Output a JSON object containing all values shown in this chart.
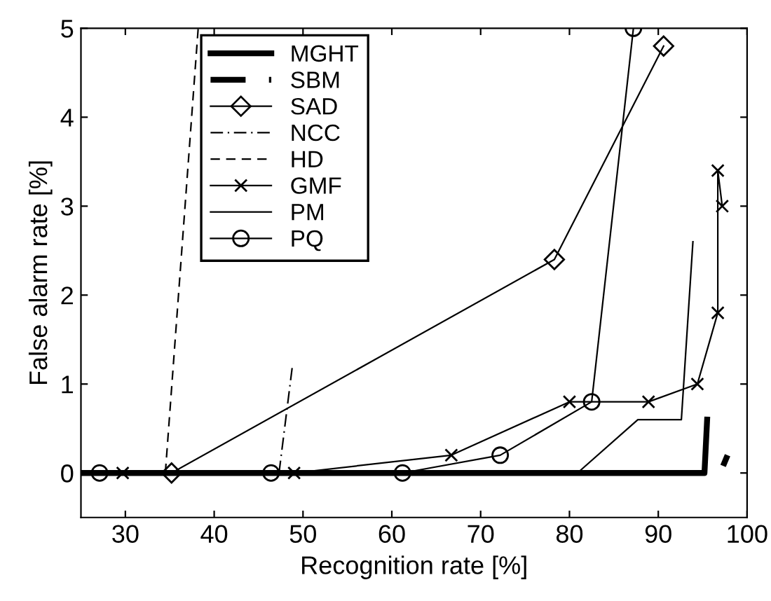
{
  "chart_data": {
    "type": "line",
    "xlabel": "Recognition rate [%]",
    "ylabel": "False alarm rate [%]",
    "xlim": [
      25,
      100
    ],
    "ylim": [
      -0.5,
      5
    ],
    "xticks": [
      30,
      40,
      50,
      60,
      70,
      80,
      90,
      100
    ],
    "yticks": [
      0,
      1,
      2,
      3,
      4,
      5
    ],
    "grid": false,
    "legend": "top left",
    "series": [
      {
        "name": "MGHT",
        "color": "#000000",
        "line_style": "solid",
        "marker": "none",
        "x": [
          25,
          95.2,
          95.5
        ],
        "values": [
          0,
          0,
          0.6
        ]
      },
      {
        "name": "SBM",
        "color": "#000000",
        "line_style": "dashed",
        "marker": "none",
        "x": [
          97.3,
          97.8
        ],
        "values": [
          0.08,
          0.2
        ]
      },
      {
        "name": "SAD",
        "color": "#000000",
        "line_style": "solid",
        "marker": "diamond",
        "x": [
          35.2,
          78.3,
          90.6
        ],
        "values": [
          0,
          2.4,
          4.8
        ]
      },
      {
        "name": "NCC",
        "color": "#000000",
        "line_style": "dashdot",
        "marker": "none",
        "x": [
          47.3,
          48.8
        ],
        "values": [
          0,
          1.2
        ]
      },
      {
        "name": "HD",
        "color": "#000000",
        "line_style": "dashed",
        "marker": "none",
        "x": [
          34.5,
          38.2
        ],
        "values": [
          0,
          5
        ]
      },
      {
        "name": "GMF",
        "color": "#000000",
        "line_style": "solid",
        "marker": "cross",
        "x": [
          29.7,
          49,
          66.7,
          80,
          88.9,
          94.4,
          96.7,
          96.7,
          97.2
        ],
        "values": [
          0,
          0,
          0.2,
          0.8,
          0.8,
          1.0,
          1.8,
          3.4,
          3.0
        ]
      },
      {
        "name": "PM",
        "color": "#000000",
        "line_style": "solid",
        "marker": "none",
        "x": [
          25,
          80.9,
          87.7,
          92.6,
          93.9
        ],
        "values": [
          0,
          0,
          0.6,
          0.6,
          2.6
        ]
      },
      {
        "name": "PQ",
        "color": "#000000",
        "line_style": "solid",
        "marker": "circle",
        "x": [
          27.1,
          46.4,
          61.2,
          72.2,
          82.5,
          87.2
        ],
        "values": [
          0,
          0,
          0,
          0.2,
          0.8,
          5
        ]
      }
    ]
  }
}
